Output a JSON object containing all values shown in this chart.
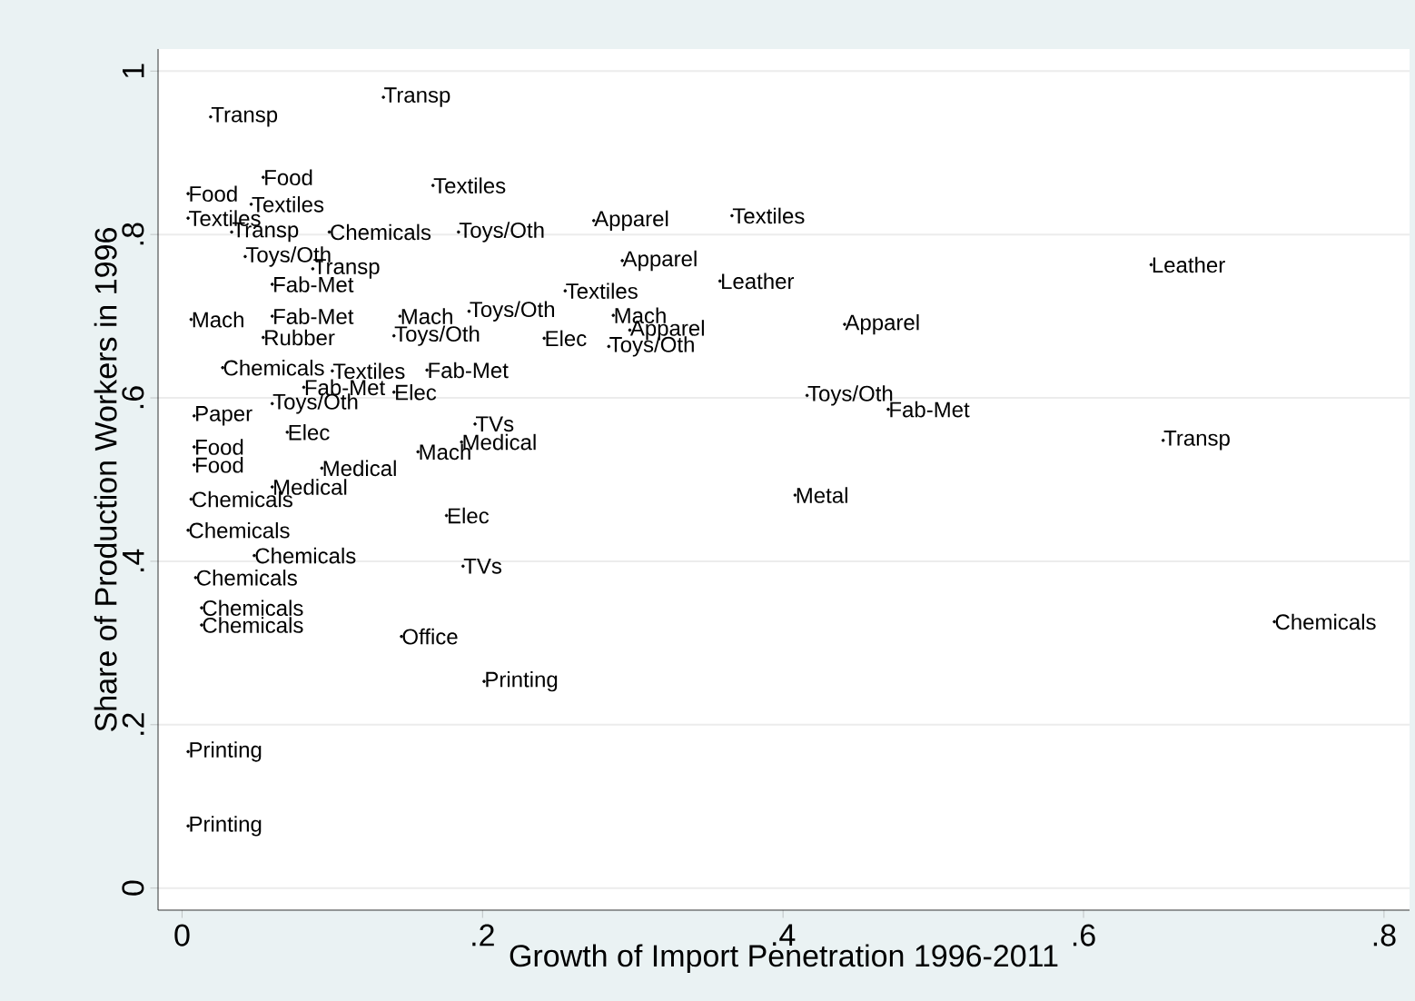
{
  "chart_data": {
    "type": "scatter",
    "xlabel": "Growth of Import Penetration 1996-2011",
    "ylabel": "Share of Production Workers in 1996",
    "color": "#000000",
    "marker": "circle",
    "grid": "y",
    "xlim": [
      -0.016,
      0.817
    ],
    "ylim": [
      -0.027,
      1.027
    ],
    "xticks": [
      0,
      {
        "value": 0.2,
        "label": ".2"
      },
      {
        "value": 0.4,
        "label": ".4"
      },
      {
        "value": 0.6,
        "label": ".6"
      },
      {
        "value": 0.8,
        "label": ".8"
      }
    ],
    "yticks": [
      0,
      {
        "value": 0.2,
        "label": ".2"
      },
      {
        "value": 0.4,
        "label": ".4"
      },
      {
        "value": 0.6,
        "label": ".6"
      },
      {
        "value": 0.8,
        "label": ".8"
      },
      1
    ],
    "x": [
      0.019,
      0.134,
      0.054,
      0.167,
      0.004,
      0.046,
      0.004,
      0.098,
      0.184,
      0.274,
      0.366,
      0.033,
      0.042,
      0.087,
      0.06,
      0.293,
      0.358,
      0.645,
      0.255,
      0.191,
      0.145,
      0.287,
      0.298,
      0.141,
      0.054,
      0.241,
      0.284,
      0.441,
      0.1,
      0.163,
      0.081,
      0.141,
      0.416,
      0.47,
      0.653,
      0.195,
      0.186,
      0.157,
      0.093,
      0.06,
      0.408,
      0.176,
      0.004,
      0.048,
      0.187,
      0.009,
      0.013,
      0.013,
      0.727,
      0.146,
      0.201,
      0.004,
      0.004,
      0.008,
      0.008,
      0.008,
      0.07,
      0.006,
      0.006,
      0.06,
      0.027,
      0.06
    ],
    "values": [
      0.944,
      0.968,
      0.87,
      0.86,
      0.85,
      0.837,
      0.82,
      0.803,
      0.803,
      0.817,
      0.823,
      0.803,
      0.773,
      0.758,
      0.739,
      0.768,
      0.743,
      0.763,
      0.731,
      0.706,
      0.7,
      0.701,
      0.683,
      0.676,
      0.674,
      0.673,
      0.663,
      0.69,
      0.633,
      0.634,
      0.613,
      0.607,
      0.603,
      0.586,
      0.548,
      0.568,
      0.546,
      0.534,
      0.514,
      0.491,
      0.481,
      0.456,
      0.438,
      0.407,
      0.394,
      0.38,
      0.343,
      0.322,
      0.326,
      0.308,
      0.253,
      0.167,
      0.076,
      0.54,
      0.518,
      0.578,
      0.558,
      0.476,
      0.696,
      0.7,
      0.637,
      0.593
    ],
    "value_labels": [
      "Transp",
      "Transp",
      "Food",
      "Textiles",
      "Food",
      "Textiles",
      "Textiles",
      "Chemicals",
      "Toys/Oth",
      "Apparel",
      "Textiles",
      "Transp",
      "Toys/Oth",
      "Transp",
      "Fab-Met",
      "Apparel",
      "Leather",
      "Leather",
      "Textiles",
      "Toys/Oth",
      "Mach",
      "Mach",
      "Apparel",
      "Toys/Oth",
      "Rubber",
      "Elec",
      "Toys/Oth",
      "Apparel",
      "Textiles",
      "Fab-Met",
      "Fab-Met",
      "Elec",
      "Toys/Oth",
      "Fab-Met",
      "Transp",
      "TVs",
      "Medical",
      "Mach",
      "Medical",
      "Medical",
      "Metal",
      "Elec",
      "Chemicals",
      "Chemicals",
      "TVs",
      "Chemicals",
      "Chemicals",
      "Chemicals",
      "Chemicals",
      "Office",
      "Printing",
      "Printing",
      "Printing",
      "Food",
      "Food",
      "Paper",
      "Elec",
      "Chemicals",
      "Mach",
      "Fab-Met",
      "Chemicals",
      "Toys/Oth"
    ]
  }
}
